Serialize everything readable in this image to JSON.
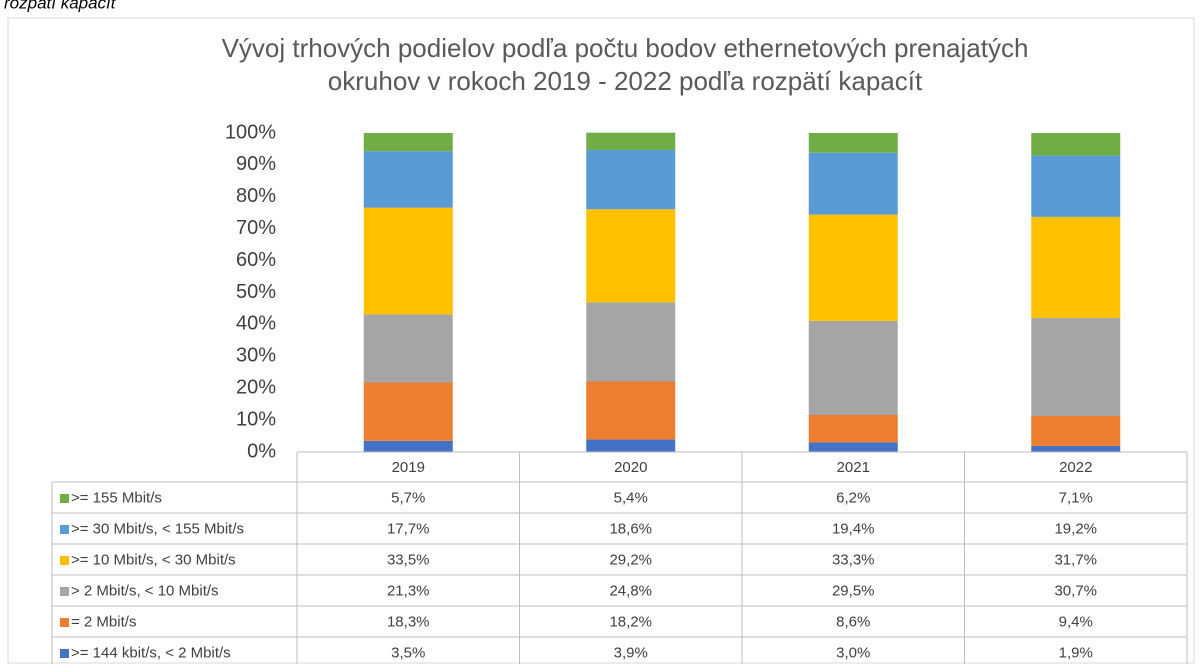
{
  "caption": "rozpätí kapacít",
  "chart_data": {
    "type": "bar",
    "stacked": true,
    "title": [
      "Vývoj trhových podielov podľa počtu bodov ethernetových prenajatých",
      "okruhov v rokoch 2019 - 2022 podľa rozpätí kapacít"
    ],
    "categories": [
      "2019",
      "2020",
      "2021",
      "2022"
    ],
    "series": [
      {
        "name": ">= 144 kbit/s, < 2 Mbit/s",
        "color": "#4472c4",
        "values": [
          3.5,
          3.9,
          3.0,
          1.9
        ],
        "value_labels": [
          "3,5%",
          "3,9%",
          "3,0%",
          "1,9%"
        ]
      },
      {
        "name": "= 2 Mbit/s",
        "color": "#ed7d31",
        "values": [
          18.3,
          18.2,
          8.6,
          9.4
        ],
        "value_labels": [
          "18,3%",
          "18,2%",
          "8,6%",
          "9,4%"
        ]
      },
      {
        "name": "> 2 Mbit/s, < 10 Mbit/s",
        "color": "#a5a5a5",
        "values": [
          21.3,
          24.8,
          29.5,
          30.7
        ],
        "value_labels": [
          "21,3%",
          "24,8%",
          "29,5%",
          "30,7%"
        ]
      },
      {
        "name": ">= 10 Mbit/s, < 30 Mbit/s",
        "color": "#ffc000",
        "values": [
          33.5,
          29.2,
          33.3,
          31.7
        ],
        "value_labels": [
          "33,5%",
          "29,2%",
          "33,3%",
          "31,7%"
        ]
      },
      {
        "name": ">= 30 Mbit/s, < 155 Mbit/s",
        "color": "#5b9bd5",
        "values": [
          17.7,
          18.6,
          19.4,
          19.2
        ],
        "value_labels": [
          "17,7%",
          "18,6%",
          "19,4%",
          "19,2%"
        ]
      },
      {
        "name": ">= 155 Mbit/s",
        "color": "#70ad47",
        "values": [
          5.7,
          5.4,
          6.2,
          7.1
        ],
        "value_labels": [
          "5,7%",
          "5,4%",
          "6,2%",
          "7,1%"
        ]
      }
    ],
    "ylim": [
      0,
      100
    ],
    "yticks": [
      {
        "value": 0,
        "label": "0%"
      },
      {
        "value": 10,
        "label": "10%"
      },
      {
        "value": 20,
        "label": "20%"
      },
      {
        "value": 30,
        "label": "30%"
      },
      {
        "value": 40,
        "label": "40%"
      },
      {
        "value": 50,
        "label": "50%"
      },
      {
        "value": 60,
        "label": "60%"
      },
      {
        "value": 70,
        "label": "70%"
      },
      {
        "value": 80,
        "label": "80%"
      },
      {
        "value": 90,
        "label": "90%"
      },
      {
        "value": 100,
        "label": "100%"
      }
    ]
  }
}
